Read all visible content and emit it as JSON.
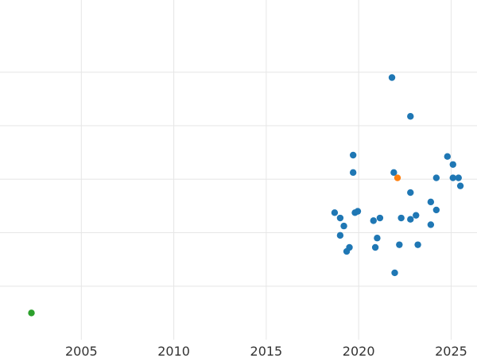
{
  "chart_data": {
    "type": "scatter",
    "title": "",
    "xlabel": "",
    "ylabel": "",
    "xlim": [
      2000.6,
      2026.4
    ],
    "ylim": [
      0,
      12.7
    ],
    "grid": true,
    "legend": "none",
    "x_ticks": [
      2005,
      2010,
      2015,
      2020,
      2025
    ],
    "x_tick_labels": [
      "2005",
      "2010",
      "2015",
      "2020",
      "2025"
    ],
    "y_gridlines": [
      2,
      4,
      6,
      8,
      10
    ],
    "series": [
      {
        "color": "#1f77b4",
        "points": [
          {
            "x": 2021.8,
            "y": 9.8
          },
          {
            "x": 2022.8,
            "y": 8.35
          },
          {
            "x": 2019.7,
            "y": 6.9
          },
          {
            "x": 2019.7,
            "y": 6.25
          },
          {
            "x": 2021.9,
            "y": 6.25
          },
          {
            "x": 2024.8,
            "y": 6.85
          },
          {
            "x": 2025.1,
            "y": 6.55
          },
          {
            "x": 2024.2,
            "y": 6.05
          },
          {
            "x": 2025.1,
            "y": 6.05
          },
          {
            "x": 2025.4,
            "y": 6.05
          },
          {
            "x": 2025.5,
            "y": 5.75
          },
          {
            "x": 2022.8,
            "y": 5.5
          },
          {
            "x": 2023.9,
            "y": 5.15
          },
          {
            "x": 2024.2,
            "y": 4.85
          },
          {
            "x": 2018.7,
            "y": 4.75
          },
          {
            "x": 2019.0,
            "y": 4.55
          },
          {
            "x": 2019.8,
            "y": 4.75
          },
          {
            "x": 2019.95,
            "y": 4.8
          },
          {
            "x": 2021.15,
            "y": 4.55
          },
          {
            "x": 2020.8,
            "y": 4.45
          },
          {
            "x": 2022.3,
            "y": 4.55
          },
          {
            "x": 2022.8,
            "y": 4.5
          },
          {
            "x": 2023.1,
            "y": 4.65
          },
          {
            "x": 2023.9,
            "y": 4.3
          },
          {
            "x": 2019.2,
            "y": 4.25
          },
          {
            "x": 2019.0,
            "y": 3.9
          },
          {
            "x": 2021.0,
            "y": 3.8
          },
          {
            "x": 2022.2,
            "y": 3.55
          },
          {
            "x": 2023.2,
            "y": 3.55
          },
          {
            "x": 2019.5,
            "y": 3.45
          },
          {
            "x": 2020.9,
            "y": 3.45
          },
          {
            "x": 2019.35,
            "y": 3.3
          },
          {
            "x": 2021.95,
            "y": 2.5
          }
        ]
      },
      {
        "color": "#ff7f0e",
        "points": [
          {
            "x": 2022.1,
            "y": 6.05
          }
        ]
      },
      {
        "color": "#2ca02c",
        "points": [
          {
            "x": 2002.3,
            "y": 1.0
          }
        ]
      }
    ]
  }
}
